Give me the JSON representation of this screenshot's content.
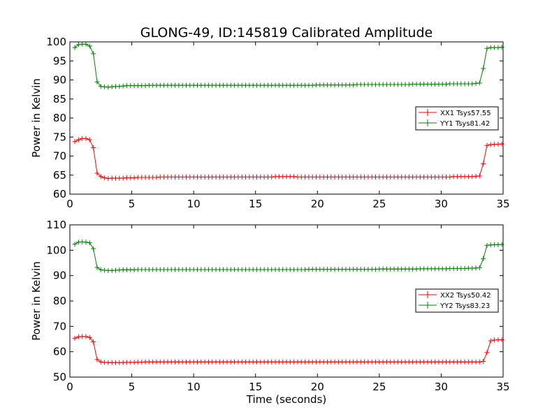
{
  "chart_data": [
    {
      "type": "line",
      "title": "GLONG-49, ID:145819 Calibrated Amplitude",
      "xlabel": "",
      "ylabel": "Power in Kelvin",
      "xlim": [
        0,
        35
      ],
      "ylim": [
        60,
        100
      ],
      "xticks": [
        "0",
        "5",
        "10",
        "15",
        "20",
        "25",
        "30",
        "35"
      ],
      "yticks": [
        "60",
        "65",
        "70",
        "75",
        "80",
        "85",
        "90",
        "95",
        "100"
      ],
      "legend_position": "center-right",
      "series": [
        {
          "name": "XX1 Tsys57.55",
          "color": "#ff0000",
          "x": [
            0.4,
            0.7,
            1.0,
            1.3,
            1.6,
            1.9,
            2.2,
            2.5,
            2.8,
            3.1,
            3.4,
            3.7,
            4.0,
            4.3,
            4.6,
            4.9,
            5.2,
            5.5,
            5.8,
            6.1,
            6.4,
            6.7,
            7.0,
            7.3,
            7.6,
            7.9,
            8.2,
            8.5,
            8.8,
            9.1,
            9.4,
            9.7,
            10.0,
            10.3,
            10.6,
            10.9,
            11.2,
            11.5,
            11.8,
            12.1,
            12.4,
            12.7,
            13.0,
            13.3,
            13.6,
            13.9,
            14.2,
            14.5,
            14.8,
            15.1,
            15.4,
            15.7,
            16.0,
            16.3,
            16.6,
            16.9,
            17.2,
            17.5,
            17.8,
            18.1,
            18.4,
            18.7,
            19.0,
            19.3,
            19.6,
            19.9,
            20.2,
            20.5,
            20.8,
            21.1,
            21.4,
            21.7,
            22.0,
            22.3,
            22.6,
            22.9,
            23.2,
            23.5,
            23.8,
            24.1,
            24.4,
            24.7,
            25.0,
            25.3,
            25.6,
            25.9,
            26.2,
            26.5,
            26.8,
            27.1,
            27.4,
            27.7,
            28.0,
            28.3,
            28.6,
            28.9,
            29.2,
            29.5,
            29.8,
            30.1,
            30.4,
            30.7,
            31.0,
            31.3,
            31.6,
            31.9,
            32.2,
            32.5,
            32.8,
            33.1,
            33.4,
            33.7,
            34.0,
            34.3,
            34.6,
            34.9
          ],
          "y": [
            73.8,
            74.3,
            74.6,
            74.6,
            74.3,
            72.2,
            65.5,
            64.6,
            64.3,
            64.1,
            64.2,
            64.2,
            64.2,
            64.2,
            64.3,
            64.3,
            64.3,
            64.4,
            64.4,
            64.4,
            64.4,
            64.4,
            64.4,
            64.5,
            64.5,
            64.5,
            64.5,
            64.5,
            64.5,
            64.5,
            64.5,
            64.5,
            64.5,
            64.5,
            64.5,
            64.5,
            64.5,
            64.5,
            64.5,
            64.5,
            64.5,
            64.5,
            64.5,
            64.5,
            64.5,
            64.5,
            64.5,
            64.5,
            64.5,
            64.5,
            64.5,
            64.5,
            64.5,
            64.5,
            64.6,
            64.6,
            64.6,
            64.6,
            64.6,
            64.6,
            64.5,
            64.5,
            64.5,
            64.5,
            64.5,
            64.5,
            64.5,
            64.5,
            64.5,
            64.5,
            64.5,
            64.5,
            64.5,
            64.5,
            64.5,
            64.5,
            64.5,
            64.5,
            64.5,
            64.5,
            64.5,
            64.5,
            64.5,
            64.5,
            64.5,
            64.5,
            64.5,
            64.5,
            64.5,
            64.5,
            64.5,
            64.5,
            64.5,
            64.5,
            64.5,
            64.5,
            64.5,
            64.5,
            64.5,
            64.5,
            64.5,
            64.5,
            64.6,
            64.6,
            64.6,
            64.6,
            64.6,
            64.6,
            64.7,
            64.8,
            68.0,
            72.8,
            73.0,
            73.1,
            73.1,
            73.2
          ]
        },
        {
          "name": "YY1 Tsys81.42",
          "color": "#008000",
          "x": [
            0.4,
            0.7,
            1.0,
            1.3,
            1.6,
            1.9,
            2.2,
            2.5,
            2.8,
            3.1,
            3.4,
            3.7,
            4.0,
            4.3,
            4.6,
            4.9,
            5.2,
            5.5,
            5.8,
            6.1,
            6.4,
            6.7,
            7.0,
            7.3,
            7.6,
            7.9,
            8.2,
            8.5,
            8.8,
            9.1,
            9.4,
            9.7,
            10.0,
            10.3,
            10.6,
            10.9,
            11.2,
            11.5,
            11.8,
            12.1,
            12.4,
            12.7,
            13.0,
            13.3,
            13.6,
            13.9,
            14.2,
            14.5,
            14.8,
            15.1,
            15.4,
            15.7,
            16.0,
            16.3,
            16.6,
            16.9,
            17.2,
            17.5,
            17.8,
            18.1,
            18.4,
            18.7,
            19.0,
            19.3,
            19.6,
            19.9,
            20.2,
            20.5,
            20.8,
            21.1,
            21.4,
            21.7,
            22.0,
            22.3,
            22.6,
            22.9,
            23.2,
            23.5,
            23.8,
            24.1,
            24.4,
            24.7,
            25.0,
            25.3,
            25.6,
            25.9,
            26.2,
            26.5,
            26.8,
            27.1,
            27.4,
            27.7,
            28.0,
            28.3,
            28.6,
            28.9,
            29.2,
            29.5,
            29.8,
            30.1,
            30.4,
            30.7,
            31.0,
            31.3,
            31.6,
            31.9,
            32.2,
            32.5,
            32.8,
            33.1,
            33.4,
            33.7,
            34.0,
            34.3,
            34.6,
            34.9
          ],
          "y": [
            98.5,
            99.3,
            99.4,
            99.4,
            98.9,
            96.9,
            89.5,
            88.3,
            88.2,
            88.1,
            88.2,
            88.3,
            88.3,
            88.4,
            88.5,
            88.5,
            88.5,
            88.5,
            88.5,
            88.5,
            88.6,
            88.6,
            88.6,
            88.6,
            88.6,
            88.6,
            88.6,
            88.6,
            88.6,
            88.6,
            88.6,
            88.6,
            88.6,
            88.6,
            88.6,
            88.6,
            88.6,
            88.6,
            88.6,
            88.6,
            88.6,
            88.6,
            88.6,
            88.6,
            88.6,
            88.6,
            88.6,
            88.6,
            88.6,
            88.6,
            88.6,
            88.6,
            88.6,
            88.6,
            88.6,
            88.6,
            88.6,
            88.6,
            88.6,
            88.6,
            88.6,
            88.6,
            88.6,
            88.6,
            88.6,
            88.7,
            88.7,
            88.7,
            88.7,
            88.7,
            88.7,
            88.7,
            88.7,
            88.7,
            88.7,
            88.7,
            88.8,
            88.8,
            88.8,
            88.8,
            88.8,
            88.8,
            88.8,
            88.8,
            88.8,
            88.8,
            88.8,
            88.8,
            88.8,
            88.8,
            88.8,
            88.9,
            88.9,
            88.9,
            88.9,
            88.9,
            88.9,
            88.9,
            88.9,
            88.9,
            88.9,
            89.0,
            89.0,
            89.0,
            89.0,
            89.0,
            89.0,
            89.0,
            89.1,
            89.2,
            93.0,
            98.3,
            98.5,
            98.5,
            98.5,
            98.6
          ]
        }
      ]
    },
    {
      "type": "line",
      "title": "",
      "xlabel": "Time (seconds)",
      "ylabel": "Power in Kelvin",
      "xlim": [
        0,
        35
      ],
      "ylim": [
        50,
        110
      ],
      "xticks": [
        "0",
        "5",
        "10",
        "15",
        "20",
        "25",
        "30",
        "35"
      ],
      "yticks": [
        "50",
        "60",
        "70",
        "80",
        "90",
        "100",
        "110"
      ],
      "legend_position": "center-right",
      "series": [
        {
          "name": "XX2 Tsys50.42",
          "color": "#ff0000",
          "x": [
            0.4,
            0.7,
            1.0,
            1.3,
            1.6,
            1.9,
            2.2,
            2.5,
            2.8,
            3.1,
            3.4,
            3.7,
            4.0,
            4.3,
            4.6,
            4.9,
            5.2,
            5.5,
            5.8,
            6.1,
            6.4,
            6.7,
            7.0,
            7.3,
            7.6,
            7.9,
            8.2,
            8.5,
            8.8,
            9.1,
            9.4,
            9.7,
            10.0,
            10.3,
            10.6,
            10.9,
            11.2,
            11.5,
            11.8,
            12.1,
            12.4,
            12.7,
            13.0,
            13.3,
            13.6,
            13.9,
            14.2,
            14.5,
            14.8,
            15.1,
            15.4,
            15.7,
            16.0,
            16.3,
            16.6,
            16.9,
            17.2,
            17.5,
            17.8,
            18.1,
            18.4,
            18.7,
            19.0,
            19.3,
            19.6,
            19.9,
            20.2,
            20.5,
            20.8,
            21.1,
            21.4,
            21.7,
            22.0,
            22.3,
            22.6,
            22.9,
            23.2,
            23.5,
            23.8,
            24.1,
            24.4,
            24.7,
            25.0,
            25.3,
            25.6,
            25.9,
            26.2,
            26.5,
            26.8,
            27.1,
            27.4,
            27.7,
            28.0,
            28.3,
            28.6,
            28.9,
            29.2,
            29.5,
            29.8,
            30.1,
            30.4,
            30.7,
            31.0,
            31.3,
            31.6,
            31.9,
            32.2,
            32.5,
            32.8,
            33.1,
            33.4,
            33.7,
            34.0,
            34.3,
            34.6,
            34.9
          ],
          "y": [
            65.3,
            65.9,
            66.0,
            66.0,
            65.6,
            63.9,
            56.9,
            56.0,
            55.8,
            55.7,
            55.7,
            55.7,
            55.7,
            55.7,
            55.8,
            55.8,
            55.8,
            55.9,
            55.9,
            56.0,
            56.0,
            56.0,
            56.0,
            56.0,
            56.0,
            56.0,
            56.0,
            56.0,
            56.0,
            56.0,
            56.0,
            56.0,
            56.0,
            56.0,
            56.0,
            56.0,
            56.0,
            56.0,
            56.0,
            56.0,
            56.0,
            56.0,
            56.0,
            56.0,
            56.0,
            56.0,
            56.0,
            56.0,
            56.0,
            56.0,
            56.0,
            56.0,
            56.0,
            56.0,
            56.0,
            56.0,
            56.0,
            56.0,
            56.0,
            56.0,
            56.0,
            56.0,
            56.0,
            56.0,
            56.0,
            56.0,
            56.0,
            56.0,
            56.0,
            56.0,
            56.0,
            56.0,
            56.0,
            56.0,
            56.0,
            56.0,
            56.0,
            56.0,
            56.0,
            56.0,
            56.0,
            56.0,
            56.0,
            56.0,
            56.0,
            56.0,
            56.0,
            56.0,
            56.0,
            56.0,
            56.0,
            56.0,
            56.0,
            56.0,
            56.0,
            56.0,
            56.0,
            56.0,
            56.0,
            56.0,
            56.0,
            56.0,
            56.0,
            56.0,
            56.0,
            56.0,
            56.0,
            56.0,
            56.0,
            56.0,
            56.2,
            59.7,
            64.3,
            64.6,
            64.7,
            64.7
          ]
        },
        {
          "name": "YY2 Tsys83.23",
          "color": "#008000",
          "x": [
            0.4,
            0.7,
            1.0,
            1.3,
            1.6,
            1.9,
            2.2,
            2.5,
            2.8,
            3.1,
            3.4,
            3.7,
            4.0,
            4.3,
            4.6,
            4.9,
            5.2,
            5.5,
            5.8,
            6.1,
            6.4,
            6.7,
            7.0,
            7.3,
            7.6,
            7.9,
            8.2,
            8.5,
            8.8,
            9.1,
            9.4,
            9.7,
            10.0,
            10.3,
            10.6,
            10.9,
            11.2,
            11.5,
            11.8,
            12.1,
            12.4,
            12.7,
            13.0,
            13.3,
            13.6,
            13.9,
            14.2,
            14.5,
            14.8,
            15.1,
            15.4,
            15.7,
            16.0,
            16.3,
            16.6,
            16.9,
            17.2,
            17.5,
            17.8,
            18.1,
            18.4,
            18.7,
            19.0,
            19.3,
            19.6,
            19.9,
            20.2,
            20.5,
            20.8,
            21.1,
            21.4,
            21.7,
            22.0,
            22.3,
            22.6,
            22.9,
            23.2,
            23.5,
            23.8,
            24.1,
            24.4,
            24.7,
            25.0,
            25.3,
            25.6,
            25.9,
            26.2,
            26.5,
            26.8,
            27.1,
            27.4,
            27.7,
            28.0,
            28.3,
            28.6,
            28.9,
            29.2,
            29.5,
            29.8,
            30.1,
            30.4,
            30.7,
            31.0,
            31.3,
            31.6,
            31.9,
            32.2,
            32.5,
            32.8,
            33.1,
            33.4,
            33.7,
            34.0,
            34.3,
            34.6,
            34.9
          ],
          "y": [
            102.4,
            103.2,
            103.3,
            103.2,
            102.9,
            100.6,
            93.2,
            92.3,
            92.1,
            92.0,
            92.0,
            92.1,
            92.2,
            92.3,
            92.3,
            92.3,
            92.3,
            92.4,
            92.4,
            92.4,
            92.4,
            92.4,
            92.4,
            92.4,
            92.4,
            92.4,
            92.4,
            92.4,
            92.4,
            92.4,
            92.4,
            92.4,
            92.4,
            92.4,
            92.4,
            92.4,
            92.4,
            92.4,
            92.4,
            92.4,
            92.4,
            92.4,
            92.4,
            92.4,
            92.4,
            92.4,
            92.4,
            92.4,
            92.4,
            92.4,
            92.4,
            92.4,
            92.4,
            92.4,
            92.4,
            92.4,
            92.4,
            92.4,
            92.4,
            92.4,
            92.4,
            92.4,
            92.4,
            92.5,
            92.5,
            92.5,
            92.5,
            92.5,
            92.5,
            92.5,
            92.5,
            92.5,
            92.5,
            92.5,
            92.5,
            92.5,
            92.5,
            92.5,
            92.5,
            92.5,
            92.5,
            92.5,
            92.6,
            92.6,
            92.6,
            92.6,
            92.6,
            92.6,
            92.6,
            92.6,
            92.6,
            92.6,
            92.6,
            92.7,
            92.7,
            92.7,
            92.7,
            92.7,
            92.7,
            92.7,
            92.7,
            92.8,
            92.8,
            92.8,
            92.8,
            92.8,
            92.9,
            92.9,
            93.0,
            93.1,
            96.7,
            101.9,
            102.1,
            102.2,
            102.2,
            102.3
          ]
        }
      ]
    }
  ]
}
